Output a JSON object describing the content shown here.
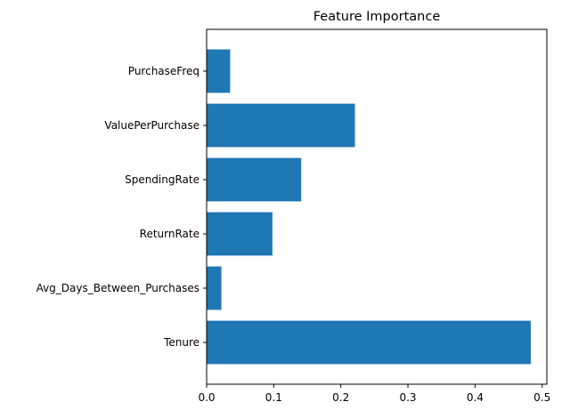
{
  "chart_data": {
    "type": "bar",
    "orientation": "horizontal",
    "title": "Feature Importance",
    "xlabel": "",
    "ylabel": "",
    "categories": [
      "Tenure",
      "Avg_Days_Between_Purchases",
      "ReturnRate",
      "SpendingRate",
      "ValuePerPurchase",
      "PurchaseFreq"
    ],
    "values": [
      0.483,
      0.022,
      0.098,
      0.141,
      0.221,
      0.035
    ],
    "xlim": [
      0,
      0.507
    ],
    "xticks": [
      0.0,
      0.1,
      0.2,
      0.3,
      0.4,
      0.5
    ],
    "xtick_labels": [
      "0.0",
      "0.1",
      "0.2",
      "0.3",
      "0.4",
      "0.5"
    ],
    "grid": false,
    "bar_color": "#1f77b4"
  }
}
